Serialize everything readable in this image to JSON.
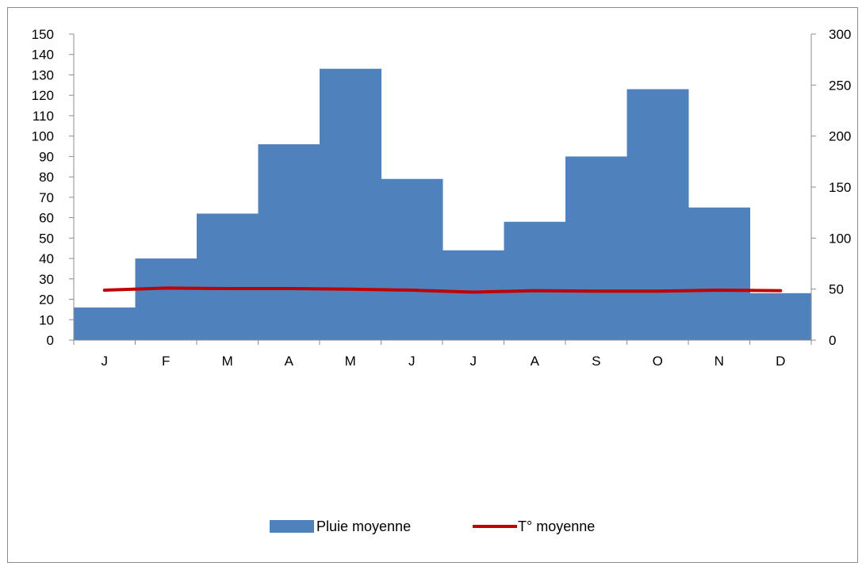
{
  "chart_data": {
    "type": "bar+line",
    "categories": [
      "J",
      "F",
      "M",
      "A",
      "M",
      "J",
      "J",
      "A",
      "S",
      "O",
      "N",
      "D"
    ],
    "series": [
      {
        "name": "Pluie moyenne",
        "type": "bar",
        "axis": "left",
        "color": "#4f81bd",
        "values": [
          16,
          40,
          62,
          96,
          133,
          79,
          44,
          58,
          90,
          123,
          65,
          23
        ]
      },
      {
        "name": "T° moyenne",
        "type": "line",
        "axis": "right",
        "color": "#c00000",
        "values": [
          49,
          51,
          50.5,
          50.5,
          50,
          49,
          47,
          48.5,
          48,
          48,
          49,
          48.5
        ]
      }
    ],
    "y_left": {
      "min": 0,
      "max": 150,
      "step": 10
    },
    "y_right": {
      "min": 0,
      "max": 300,
      "step": 50
    },
    "bar_gap": 0,
    "grid": false,
    "legend_position": "bottom"
  }
}
